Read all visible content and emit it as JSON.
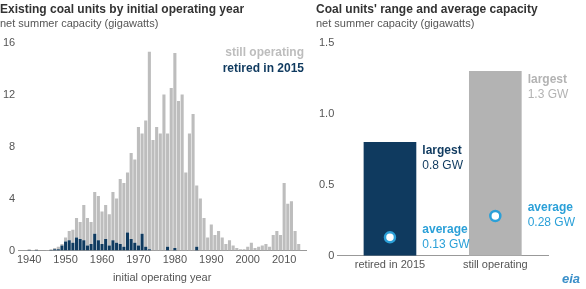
{
  "chart_data": [
    {
      "type": "bar",
      "title": "Existing coal units by initial operating year",
      "subtitle": "net summer capacity (gigawatts)",
      "xlabel": "initial operating year",
      "x": [
        1940,
        1941,
        1942,
        1943,
        1944,
        1945,
        1946,
        1947,
        1948,
        1949,
        1950,
        1951,
        1952,
        1953,
        1954,
        1955,
        1956,
        1957,
        1958,
        1959,
        1960,
        1961,
        1962,
        1963,
        1964,
        1965,
        1966,
        1967,
        1968,
        1969,
        1970,
        1971,
        1972,
        1973,
        1974,
        1975,
        1976,
        1977,
        1978,
        1979,
        1980,
        1981,
        1982,
        1983,
        1984,
        1985,
        1986,
        1987,
        1988,
        1989,
        1990,
        1991,
        1992,
        1993,
        1994,
        1995,
        1996,
        1997,
        1998,
        1999,
        2000,
        2001,
        2002,
        2003,
        2004,
        2005,
        2006,
        2007,
        2008,
        2009,
        2010,
        2011,
        2012,
        2013,
        2014
      ],
      "series": [
        {
          "name": "retired in 2015",
          "color": "#0f3a5f",
          "values": [
            0.05,
            0,
            0.05,
            0,
            0,
            0,
            0.05,
            0.1,
            0.1,
            0.4,
            0.7,
            0.8,
            0.6,
            1.0,
            0.9,
            0.8,
            0.4,
            0.5,
            1.3,
            0.8,
            0.5,
            0.9,
            0.4,
            0.8,
            0.6,
            0.5,
            0.3,
            1.4,
            0.9,
            0.6,
            0.4,
            1.3,
            0.3,
            0.1,
            0,
            0,
            0,
            0,
            0.3,
            0,
            0.2,
            0,
            0,
            0,
            0,
            0,
            0.3,
            0,
            0,
            0,
            0,
            0,
            0,
            0,
            0,
            0,
            0,
            0,
            0,
            0,
            0,
            0,
            0,
            0,
            0,
            0,
            0,
            0,
            0,
            0,
            0,
            0,
            0,
            0,
            0
          ]
        },
        {
          "name": "still operating",
          "color": "#bdbdbd",
          "values": [
            0.05,
            0.05,
            0.05,
            0,
            0,
            0.05,
            0.05,
            0.1,
            0.2,
            0.1,
            0.3,
            0.7,
            1.0,
            1.5,
            1.3,
            2.7,
            2.1,
            1.7,
            3.2,
            3.4,
            2.5,
            2.6,
            2.4,
            3.7,
            3.4,
            5.0,
            4.9,
            4.6,
            6.6,
            6.4,
            9.1,
            7.7,
            9.7,
            15.2,
            8.5,
            9.5,
            9.0,
            12.0,
            8.7,
            12.5,
            15.0,
            11.5,
            12.0,
            6.0,
            9.0,
            10.5,
            4.7,
            4.0,
            2.5,
            1.0,
            2.0,
            1.2,
            1.5,
            1.0,
            0.5,
            0.8,
            0.4,
            0.2,
            0.1,
            0.1,
            0.3,
            0.6,
            0.2,
            0.3,
            0.4,
            0.5,
            0.3,
            1.2,
            1.5,
            1.2,
            5.2,
            3.6,
            3.8,
            1.5,
            0.5
          ]
        }
      ],
      "stacked": true,
      "xlim": [
        1937,
        2016
      ],
      "xticks": [
        1940,
        1950,
        1960,
        1970,
        1980,
        1990,
        2000,
        2010
      ],
      "ylim": [
        0,
        16
      ],
      "yticks": [
        0,
        4,
        8,
        12,
        16
      ],
      "grid": false,
      "legend": "upper right"
    },
    {
      "type": "bar",
      "title": "Coal units' range and average capacity",
      "subtitle": "net summer capacity (gigawatts)",
      "categories": [
        "retired in 2015",
        "still operating"
      ],
      "series": [
        {
          "name": "largest",
          "colors": [
            "#0f3a5f",
            "#b3b3b3"
          ],
          "values": [
            0.8,
            1.3
          ],
          "value_labels": [
            "0.8 GW",
            "1.3 GW"
          ]
        },
        {
          "name": "average",
          "type": "scatter",
          "marker": "circle",
          "color": "#2ba0d8",
          "values": [
            0.13,
            0.28
          ],
          "value_labels": [
            "0.13 GW",
            "0.28 GW"
          ]
        }
      ],
      "ylim": [
        0,
        1.5
      ],
      "yticks": [
        0,
        0.5,
        {
          "value": 1,
          "label": "1.0"
        },
        1.5
      ],
      "grid": false,
      "data_labels": true
    }
  ],
  "logo": "eia"
}
